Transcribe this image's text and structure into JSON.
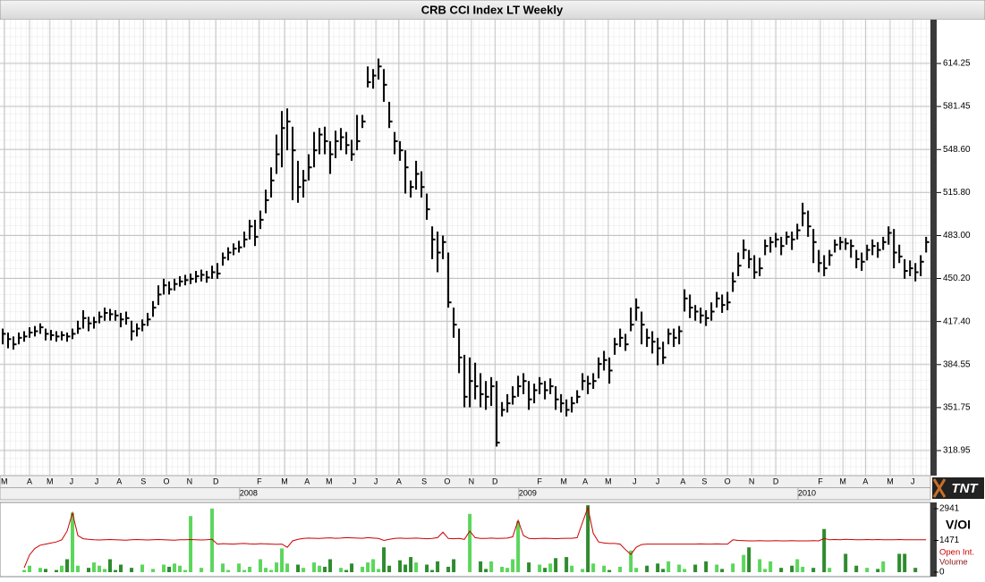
{
  "logo": "TNT",
  "chart_data": [
    {
      "type": "ohlc",
      "title": "CRB CCI Index LT Weekly",
      "color": "#000000",
      "grid": true,
      "xlim": [
        -0.5,
        172.8
      ],
      "ylim": [
        299.85,
        647.67
      ],
      "yticks": [
        {
          "value": 318.95,
          "label": "318.95"
        },
        {
          "value": 351.75,
          "label": "351.75"
        },
        {
          "value": 384.55,
          "label": "384.55"
        },
        {
          "value": 417.4,
          "label": "417.40"
        },
        {
          "value": 450.2,
          "label": "450.20"
        },
        {
          "value": 483,
          "label": "483.00"
        },
        {
          "value": 515.8,
          "label": "515.80"
        },
        {
          "value": 548.6,
          "label": "548.60"
        },
        {
          "value": 581.45,
          "label": "581.45"
        },
        {
          "value": 614.25,
          "label": "614.25"
        }
      ],
      "xticks": [
        {
          "value": 0.3,
          "label": "M"
        },
        {
          "value": 5,
          "label": "A"
        },
        {
          "value": 8.8,
          "label": "M"
        },
        {
          "value": 12.8,
          "label": "J"
        },
        {
          "value": 17.5,
          "label": "J"
        },
        {
          "value": 21.7,
          "label": "A"
        },
        {
          "value": 26.2,
          "label": "S"
        },
        {
          "value": 30.5,
          "label": "O"
        },
        {
          "value": 34.8,
          "label": "N"
        },
        {
          "value": 39.7,
          "label": "D"
        },
        {
          "value": 47.8,
          "label": "F"
        },
        {
          "value": 52.5,
          "label": "M"
        },
        {
          "value": 56.7,
          "label": "A"
        },
        {
          "value": 60.8,
          "label": "M"
        },
        {
          "value": 65.5,
          "label": "J"
        },
        {
          "value": 69.5,
          "label": "J"
        },
        {
          "value": 73.8,
          "label": "A"
        },
        {
          "value": 78.5,
          "label": "S"
        },
        {
          "value": 82.8,
          "label": "O"
        },
        {
          "value": 87.3,
          "label": "N"
        },
        {
          "value": 91.7,
          "label": "D"
        },
        {
          "value": 100,
          "label": "F"
        },
        {
          "value": 104.5,
          "label": "M"
        },
        {
          "value": 108.5,
          "label": "A"
        },
        {
          "value": 112.8,
          "label": "M"
        },
        {
          "value": 117.7,
          "label": "J"
        },
        {
          "value": 122,
          "label": "J"
        },
        {
          "value": 126.7,
          "label": "A"
        },
        {
          "value": 130.7,
          "label": "S"
        },
        {
          "value": 135,
          "label": "O"
        },
        {
          "value": 139.5,
          "label": "N"
        },
        {
          "value": 144,
          "label": "D"
        },
        {
          "value": 152.3,
          "label": "F"
        },
        {
          "value": 156.5,
          "label": "M"
        },
        {
          "value": 160.7,
          "label": "A"
        },
        {
          "value": 165.3,
          "label": "M"
        },
        {
          "value": 169.5,
          "label": "J"
        }
      ],
      "year_ticks": [
        {
          "value": 45.8,
          "label": "2008"
        },
        {
          "value": 97.8,
          "label": "2009"
        },
        {
          "value": 149.8,
          "label": "2010"
        }
      ],
      "high": [
        412,
        409,
        406,
        409,
        410,
        413,
        414,
        416,
        412,
        411,
        410,
        410,
        409,
        412,
        418,
        426,
        421,
        421,
        425,
        428,
        427,
        426,
        424,
        425,
        418,
        416,
        419,
        424,
        433,
        445,
        450,
        448,
        450,
        452,
        453,
        454,
        456,
        457,
        456,
        460,
        462,
        470,
        474,
        477,
        479,
        486,
        495,
        495,
        502,
        518,
        535,
        560,
        578,
        580,
        566,
        540,
        533,
        545,
        562,
        565,
        566,
        555,
        563,
        565,
        562,
        556,
        575,
        575,
        612,
        610,
        618,
        610,
        585,
        562,
        555,
        548,
        525,
        540,
        532,
        515,
        490,
        486,
        483,
        470,
        428,
        412,
        392,
        390,
        386,
        378,
        372,
        375,
        372,
        356,
        362,
        368,
        376,
        378,
        372,
        370,
        375,
        372,
        374,
        368,
        362,
        358,
        360,
        365,
        378,
        376,
        378,
        390,
        395,
        390,
        405,
        412,
        408,
        428,
        435,
        425,
        412,
        410,
        405,
        402,
        412,
        412,
        414,
        442,
        438,
        430,
        428,
        426,
        432,
        440,
        438,
        440,
        455,
        470,
        480,
        472,
        468,
        466,
        480,
        482,
        485,
        482,
        486,
        486,
        492,
        508,
        502,
        488,
        472,
        468,
        472,
        480,
        482,
        481,
        480,
        472,
        470,
        476,
        480,
        478,
        482,
        490,
        488,
        476,
        465,
        464,
        462,
        468,
        482
      ],
      "low": [
        400,
        397,
        396,
        400,
        402,
        405,
        406,
        408,
        403,
        403,
        402,
        403,
        402,
        404,
        408,
        412,
        410,
        412,
        416,
        418,
        418,
        418,
        413,
        415,
        403,
        406,
        410,
        414,
        421,
        430,
        438,
        438,
        441,
        444,
        445,
        446,
        447,
        448,
        447,
        450,
        450,
        460,
        464,
        468,
        470,
        474,
        480,
        475,
        488,
        500,
        512,
        530,
        535,
        548,
        510,
        508,
        512,
        525,
        535,
        545,
        545,
        530,
        542,
        548,
        545,
        540,
        548,
        565,
        596,
        595,
        602,
        585,
        565,
        545,
        540,
        515,
        512,
        518,
        512,
        495,
        465,
        455,
        465,
        428,
        405,
        378,
        352,
        352,
        358,
        352,
        350,
        353,
        322,
        345,
        348,
        354,
        360,
        362,
        350,
        355,
        362,
        358,
        362,
        350,
        348,
        345,
        348,
        355,
        365,
        362,
        366,
        374,
        380,
        370,
        392,
        398,
        395,
        410,
        418,
        400,
        398,
        393,
        384,
        385,
        400,
        398,
        400,
        425,
        420,
        418,
        416,
        414,
        418,
        428,
        424,
        426,
        440,
        452,
        465,
        458,
        450,
        452,
        468,
        470,
        474,
        468,
        476,
        472,
        480,
        490,
        482,
        462,
        455,
        452,
        460,
        470,
        472,
        472,
        466,
        458,
        456,
        464,
        468,
        466,
        472,
        476,
        458,
        462,
        450,
        452,
        448,
        452,
        470
      ],
      "close": [
        408,
        404,
        400,
        405,
        406,
        409,
        410,
        413,
        408,
        407,
        406,
        407,
        406,
        408,
        412,
        420,
        416,
        417,
        421,
        424,
        423,
        422,
        419,
        420,
        410,
        412,
        415,
        419,
        428,
        438,
        445,
        442,
        446,
        448,
        449,
        450,
        452,
        453,
        451,
        455,
        454,
        466,
        470,
        473,
        474,
        480,
        490,
        482,
        495,
        510,
        525,
        545,
        565,
        570,
        548,
        520,
        525,
        535,
        548,
        560,
        555,
        545,
        555,
        558,
        552,
        545,
        555,
        570,
        600,
        605,
        612,
        598,
        570,
        555,
        548,
        535,
        520,
        530,
        520,
        503,
        480,
        470,
        478,
        432,
        415,
        390,
        360,
        372,
        368,
        362,
        360,
        368,
        325,
        350,
        355,
        360,
        368,
        372,
        358,
        365,
        370,
        365,
        368,
        358,
        355,
        350,
        355,
        360,
        372,
        370,
        372,
        385,
        388,
        380,
        400,
        405,
        400,
        415,
        428,
        415,
        405,
        402,
        397,
        390,
        408,
        405,
        410,
        435,
        428,
        425,
        422,
        420,
        425,
        435,
        430,
        432,
        448,
        460,
        472,
        465,
        455,
        458,
        475,
        478,
        480,
        475,
        482,
        480,
        487,
        500,
        490,
        478,
        462,
        458,
        468,
        476,
        478,
        477,
        475,
        465,
        463,
        472,
        475,
        472,
        478,
        485,
        470,
        467,
        456,
        458,
        455,
        463,
        478
      ]
    },
    {
      "type": "volume",
      "title": "V/OI",
      "xlim": [
        -0.5,
        172.8
      ],
      "ylim": [
        -207,
        3231
      ],
      "yticks": [
        0,
        1471,
        2941
      ],
      "colors": [
        "#5cd65c",
        "#2e8b2e"
      ],
      "series": [
        {
          "name": "Open Int.",
          "color": "#cc0000",
          "values": [
            null,
            null,
            null,
            null,
            200,
            800,
            1100,
            1250,
            1300,
            1350,
            1400,
            1500,
            1900,
            2750,
            1700,
            1550,
            1520,
            1500,
            1490,
            1500,
            1510,
            1500,
            1490,
            1480,
            1500,
            1510,
            1500,
            1490,
            1500,
            1510,
            1500,
            1490,
            1480,
            1500,
            1500,
            1510,
            1500,
            1490,
            1500,
            1520,
            1300,
            1320,
            1310,
            1300,
            1320,
            1330,
            1310,
            1300,
            1320,
            1310,
            1300,
            1290,
            1300,
            1150,
            1450,
            1520,
            1560,
            1580,
            1570,
            1560,
            1580,
            1590,
            1570,
            1580,
            1600,
            1590,
            1580,
            1570,
            1600,
            1580,
            1560,
            1470,
            1520,
            1560,
            1580,
            1560,
            1570,
            1580,
            1560,
            1550,
            1560,
            1600,
            1850,
            1560,
            1550,
            1560,
            1520,
            1900,
            1600,
            1560,
            1560,
            1580,
            1560,
            1570,
            1580,
            1640,
            2400,
            1700,
            1560,
            1550,
            1560,
            1570,
            1560,
            1550,
            1560,
            1570,
            1570,
            1600,
            2300,
            3000,
            1800,
            1400,
            1350,
            1330,
            1330,
            1300,
            1050,
            820,
            1150,
            1280,
            1300,
            1300,
            1300,
            1300,
            1300,
            1300,
            1300,
            1300,
            1300,
            1300,
            1310,
            1300,
            1300,
            1310,
            1300,
            1300,
            1500,
            1470,
            1460,
            1450,
            1450,
            1460,
            1450,
            1450,
            1460,
            1450,
            1450,
            1460,
            1450,
            1450,
            1450,
            1460,
            1450,
            1560,
            1500,
            1510,
            1500,
            1520,
            1510,
            1500,
            1500,
            1510,
            1500,
            1510,
            1500,
            1500,
            1500,
            1510,
            1500,
            1500,
            1500,
            1500,
            1500
          ]
        },
        {
          "name": "Volume",
          "color": "#8b1a1a",
          "values": [
            0,
            0,
            0,
            0,
            100,
            300,
            0,
            200,
            150,
            0,
            100,
            300,
            600,
            2750,
            300,
            0,
            200,
            450,
            300,
            150,
            600,
            100,
            350,
            0,
            200,
            0,
            350,
            0,
            150,
            0,
            350,
            250,
            400,
            300,
            100,
            2600,
            0,
            200,
            0,
            2950,
            0,
            400,
            100,
            0,
            400,
            100,
            250,
            0,
            600,
            200,
            100,
            450,
            1100,
            400,
            0,
            350,
            200,
            0,
            450,
            300,
            250,
            600,
            0,
            200,
            100,
            400,
            0,
            250,
            450,
            600,
            150,
            1150,
            300,
            0,
            550,
            350,
            700,
            450,
            0,
            350,
            100,
            500,
            0,
            250,
            600,
            0,
            0,
            2700,
            0,
            500,
            150,
            500,
            0,
            250,
            200,
            600,
            2350,
            0,
            450,
            0,
            350,
            200,
            400,
            650,
            0,
            700,
            300,
            0,
            150,
            3100,
            400,
            0,
            300,
            100,
            0,
            250,
            0,
            1000,
            200,
            0,
            300,
            0,
            400,
            150,
            500,
            0,
            350,
            150,
            0,
            350,
            0,
            500,
            0,
            350,
            150,
            0,
            400,
            0,
            800,
            1150,
            0,
            600,
            150,
            500,
            0,
            200,
            0,
            300,
            600,
            250,
            0,
            200,
            0,
            2000,
            200,
            0,
            0,
            850,
            0,
            300,
            0,
            200,
            0,
            150,
            500,
            0,
            0,
            850,
            850,
            0,
            200,
            0,
            0
          ]
        }
      ]
    }
  ]
}
